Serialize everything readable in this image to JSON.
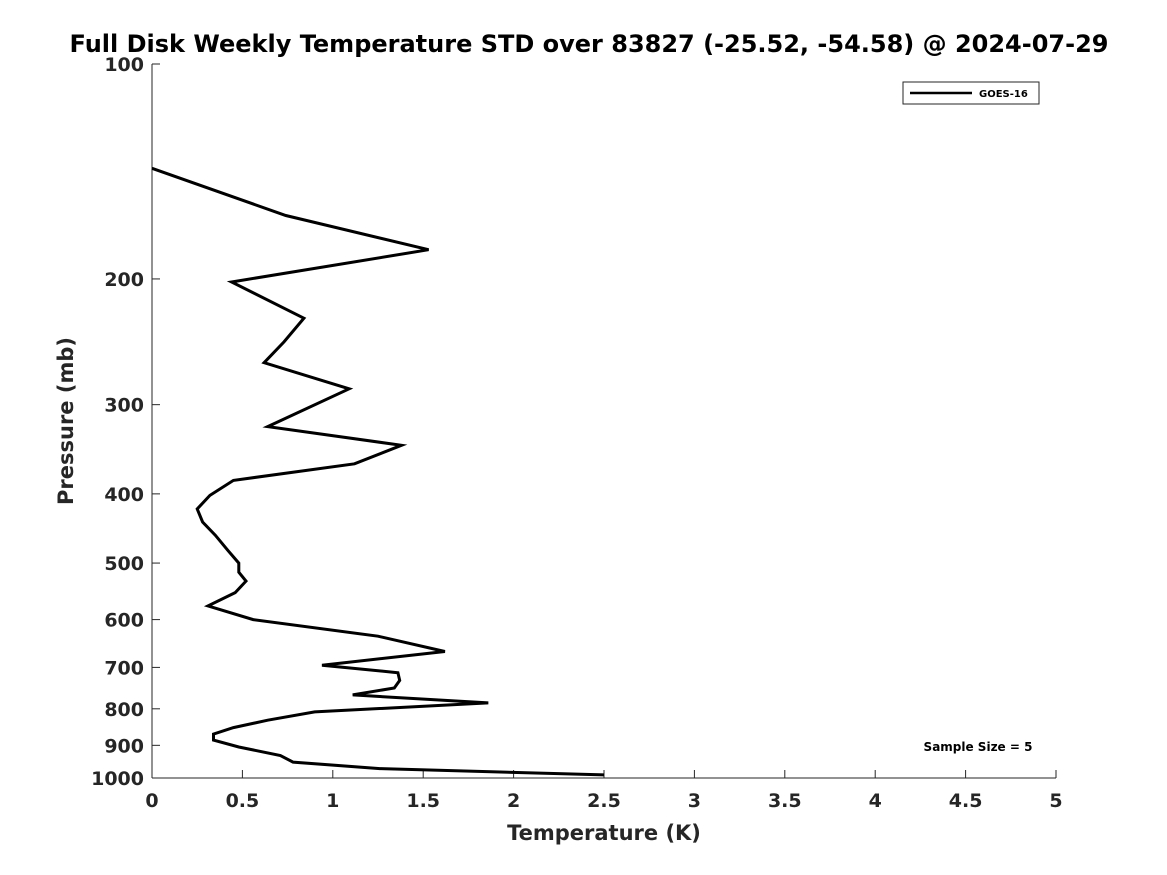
{
  "chart_data": {
    "type": "line",
    "title": "Full Disk Weekly Temperature STD over 83827 (-25.52, -54.58) @ 2024-07-29",
    "xlabel": "Temperature (K)",
    "ylabel": "Pressure (mb)",
    "xlim": [
      0,
      5
    ],
    "ylim": [
      100,
      1000
    ],
    "y_scale": "log",
    "y_reversed": true,
    "x_ticks": [
      "0",
      "0.5",
      "1",
      "1.5",
      "2",
      "2.5",
      "3",
      "3.5",
      "4",
      "4.5",
      "5"
    ],
    "y_ticks": [
      "100",
      "200",
      "300",
      "400",
      "500",
      "600",
      "700",
      "800",
      "900",
      "1000"
    ],
    "grid": false,
    "legend_position": "top-right",
    "annotation": "Sample Size = 5",
    "series": [
      {
        "name": "GOES-16",
        "color": "#000000",
        "points": [
          [
            0.0,
            140
          ],
          [
            0.74,
            163
          ],
          [
            1.53,
            182
          ],
          [
            0.44,
            202
          ],
          [
            0.84,
            227
          ],
          [
            0.73,
            245
          ],
          [
            0.62,
            262
          ],
          [
            1.09,
            285
          ],
          [
            0.64,
            322
          ],
          [
            1.38,
            342
          ],
          [
            1.12,
            363
          ],
          [
            0.45,
            383
          ],
          [
            0.32,
            402
          ],
          [
            0.25,
            420
          ],
          [
            0.28,
            438
          ],
          [
            0.35,
            457
          ],
          [
            0.42,
            480
          ],
          [
            0.48,
            500
          ],
          [
            0.48,
            515
          ],
          [
            0.52,
            530
          ],
          [
            0.46,
            550
          ],
          [
            0.31,
            574
          ],
          [
            0.56,
            600
          ],
          [
            1.25,
            633
          ],
          [
            1.62,
            665
          ],
          [
            0.94,
            695
          ],
          [
            1.36,
            712
          ],
          [
            1.37,
            730
          ],
          [
            1.34,
            748
          ],
          [
            1.11,
            765
          ],
          [
            1.86,
            785
          ],
          [
            0.9,
            808
          ],
          [
            0.64,
            830
          ],
          [
            0.45,
            850
          ],
          [
            0.34,
            868
          ],
          [
            0.34,
            885
          ],
          [
            0.48,
            905
          ],
          [
            0.71,
            930
          ],
          [
            0.78,
            950
          ],
          [
            1.26,
            970
          ],
          [
            2.5,
            990
          ]
        ]
      }
    ]
  }
}
